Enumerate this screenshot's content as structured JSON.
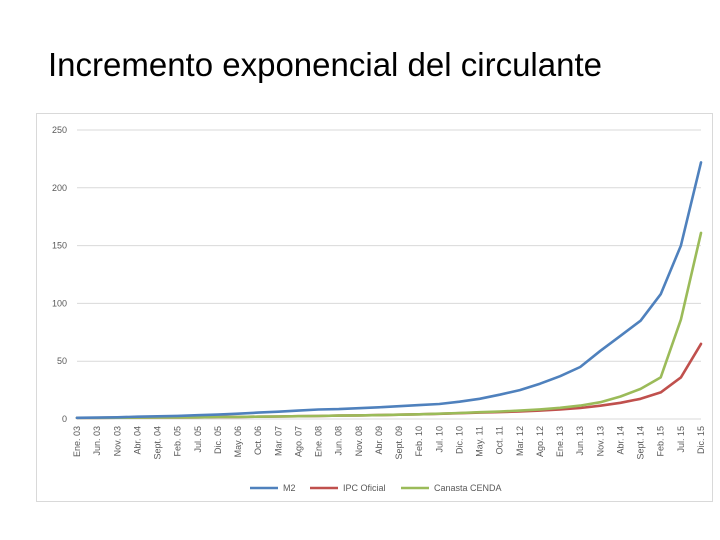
{
  "slide": {
    "title": "Incremento exponencial del circulante"
  },
  "chart_data": {
    "type": "line",
    "title": "",
    "xlabel": "",
    "ylabel": "",
    "ylim": [
      0,
      250
    ],
    "yticks": [
      0,
      50,
      100,
      150,
      200,
      250
    ],
    "grid": true,
    "legend_position": "bottom",
    "categories": [
      "Ene. 03",
      "Jun. 03",
      "Nov. 03",
      "Abr. 04",
      "Sept. 04",
      "Feb. 05",
      "Jul. 05",
      "Dic. 05",
      "May. 06",
      "Oct. 06",
      "Mar. 07",
      "Ago. 07",
      "Ene. 08",
      "Jun. 08",
      "Nov. 08",
      "Abr. 09",
      "Sept. 09",
      "Feb. 10",
      "Jul. 10",
      "Dic. 10",
      "May. 11",
      "Oct. 11",
      "Mar. 12",
      "Ago. 12",
      "Ene. 13",
      "Jun. 13",
      "Nov. 13",
      "Abr. 14",
      "Sept. 14",
      "Feb. 15",
      "Jul. 15",
      "Dic. 15"
    ],
    "series": [
      {
        "name": "M2",
        "color": "#4f81bd",
        "values": [
          1,
          1.2,
          1.5,
          2,
          2.3,
          2.7,
          3.3,
          3.8,
          4.6,
          5.5,
          6.3,
          7.3,
          8.2,
          8.6,
          9.3,
          10.1,
          11.1,
          12,
          13,
          15,
          17.5,
          21,
          25,
          30.5,
          37,
          45,
          59,
          72,
          85,
          108,
          150,
          222
        ]
      },
      {
        "name": "IPC Oficial",
        "color": "#c0504d",
        "values": [
          1,
          1,
          1.1,
          1.2,
          1.3,
          1.4,
          1.5,
          1.7,
          1.8,
          2,
          2.2,
          2.4,
          2.6,
          2.9,
          3.1,
          3.4,
          3.7,
          4.1,
          4.5,
          5,
          5.5,
          6,
          6.6,
          7.3,
          8.2,
          9.5,
          11.5,
          14,
          17.5,
          23,
          36,
          65
        ]
      },
      {
        "name": "Canasta CENDA",
        "color": "#9bbb59",
        "values": [
          1,
          1,
          1.1,
          1.2,
          1.3,
          1.4,
          1.5,
          1.7,
          1.8,
          2,
          2.2,
          2.4,
          2.6,
          2.9,
          3.1,
          3.4,
          3.7,
          4.1,
          4.6,
          5.2,
          5.9,
          6.5,
          7.3,
          8.3,
          9.7,
          11.6,
          14.5,
          19.5,
          26,
          36,
          86,
          161
        ]
      }
    ]
  }
}
